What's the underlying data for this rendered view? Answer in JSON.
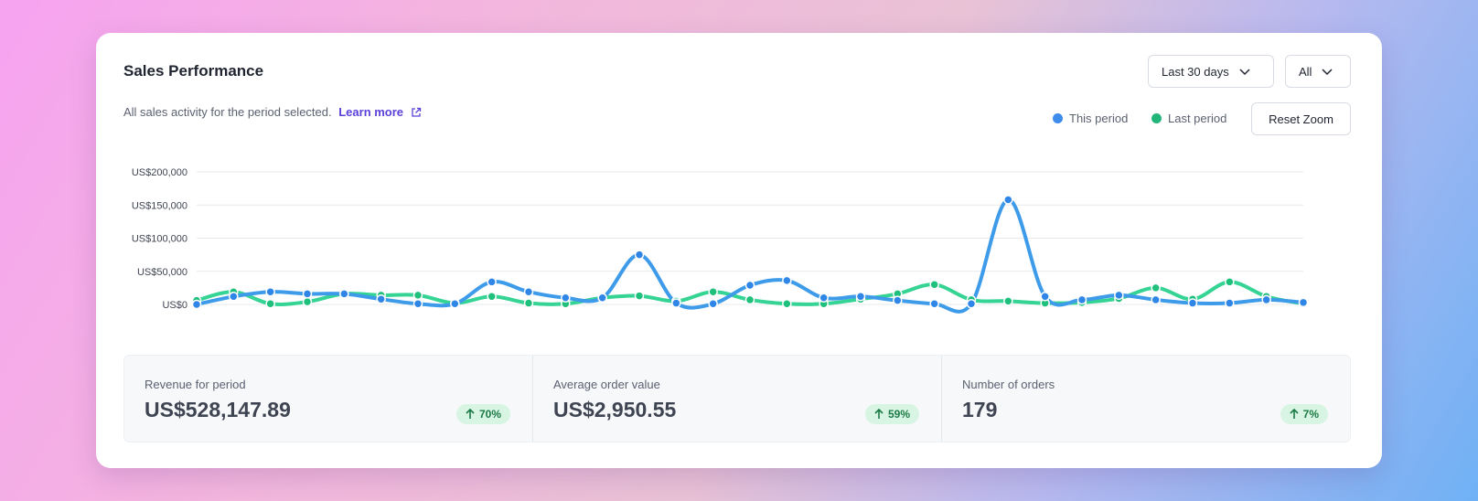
{
  "header": {
    "title": "Sales Performance",
    "subtitle": "All sales activity for the period selected.",
    "learn_more": "Learn more",
    "period_select": "Last 30 days",
    "filter_select": "All",
    "reset_zoom": "Reset Zoom"
  },
  "legend": {
    "this_period": "This period",
    "last_period": "Last period"
  },
  "colors": {
    "this_period": "#3d9be9",
    "last_period": "#35d394",
    "badge_bg": "#d8f5e4",
    "badge_text": "#1b7a45"
  },
  "chart_data": {
    "type": "line",
    "title": "",
    "xlabel": "",
    "ylabel": "",
    "ylim": [
      0,
      200000
    ],
    "yticks": [
      "US$0",
      "US$50,000",
      "US$100,000",
      "US$150,000",
      "US$200,000"
    ],
    "ytick_values": [
      0,
      50000,
      100000,
      150000,
      200000
    ],
    "grid": true,
    "legend_position": "top-right",
    "x": [
      1,
      2,
      3,
      4,
      5,
      6,
      7,
      8,
      9,
      10,
      11,
      12,
      13,
      14,
      15,
      16,
      17,
      18,
      19,
      20,
      21,
      22,
      23,
      24,
      25,
      26,
      27,
      28,
      29,
      30,
      31
    ],
    "series": [
      {
        "name": "This period",
        "color": "#3d9be9",
        "values": [
          0,
          12000,
          19000,
          16000,
          16000,
          8000,
          1000,
          1000,
          34000,
          19000,
          10000,
          10000,
          75000,
          2000,
          1000,
          29000,
          36000,
          10000,
          12000,
          6000,
          1000,
          1000,
          158000,
          12000,
          7000,
          14000,
          7000,
          2000,
          2000,
          7000,
          3000
        ]
      },
      {
        "name": "Last period",
        "color": "#35d394",
        "values": [
          6000,
          19000,
          1000,
          4000,
          16000,
          14000,
          14000,
          2000,
          12000,
          2000,
          1000,
          10000,
          13000,
          5000,
          19000,
          7000,
          1000,
          1000,
          8000,
          16000,
          30000,
          7000,
          5000,
          2000,
          3000,
          9000,
          25000,
          8000,
          34000,
          12000,
          1000
        ]
      }
    ]
  },
  "stats": [
    {
      "label": "Revenue for period",
      "value": "US$528,147.89",
      "change": "70%"
    },
    {
      "label": "Average order value",
      "value": "US$2,950.55",
      "change": "59%"
    },
    {
      "label": "Number of orders",
      "value": "179",
      "change": "7%"
    }
  ]
}
